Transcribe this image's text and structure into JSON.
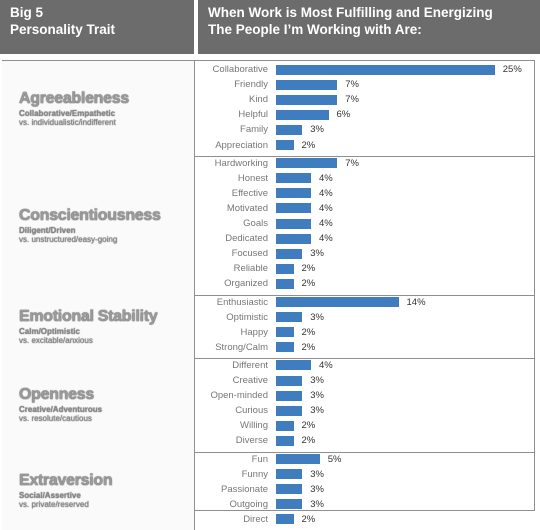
{
  "header": {
    "left_line1": "Big 5",
    "left_line2": "Personality Trait",
    "right_line1": "When Work is Most Fulfilling and Energizing",
    "right_line2": "The People I’m Working with Are:"
  },
  "colors": {
    "bar": "#3f7dbf",
    "header_bg": "#6c6c6c"
  },
  "chart_data": {
    "type": "bar",
    "orientation": "horizontal",
    "value_unit": "%",
    "xlim": [
      0,
      25
    ],
    "groups": [
      {
        "trait": "Agreeableness",
        "desc1": "Collaborative/Empathetic",
        "desc2": "vs. individualistic/indifferent",
        "items": [
          {
            "label": "Collaborative",
            "value": 25,
            "text": "25%"
          },
          {
            "label": "Friendly",
            "value": 7,
            "text": "7%"
          },
          {
            "label": "Kind",
            "value": 7,
            "text": "7%"
          },
          {
            "label": "Helpful",
            "value": 6,
            "text": "6%"
          },
          {
            "label": "Family",
            "value": 3,
            "text": "3%"
          },
          {
            "label": "Appreciation",
            "value": 2,
            "text": "2%"
          }
        ]
      },
      {
        "trait": "Conscientiousness",
        "desc1": "Diligent/Driven",
        "desc2": "vs. unstructured/easy-going",
        "items": [
          {
            "label": "Hardworking",
            "value": 7,
            "text": "7%"
          },
          {
            "label": "Honest",
            "value": 4,
            "text": "4%"
          },
          {
            "label": "Effective",
            "value": 4,
            "text": "4%"
          },
          {
            "label": "Motivated",
            "value": 4,
            "text": "4%"
          },
          {
            "label": "Goals",
            "value": 4,
            "text": "4%"
          },
          {
            "label": "Dedicated",
            "value": 4,
            "text": "4%"
          },
          {
            "label": "Focused",
            "value": 3,
            "text": "3%"
          },
          {
            "label": "Reliable",
            "value": 2,
            "text": "2%"
          },
          {
            "label": "Organized",
            "value": 2,
            "text": "2%"
          }
        ]
      },
      {
        "trait": "Emotional Stability",
        "desc1": "Calm/Optimistic",
        "desc2": "vs. excitable/anxious",
        "items": [
          {
            "label": "Enthusiastic",
            "value": 14,
            "text": "14%"
          },
          {
            "label": "Optimistic",
            "value": 3,
            "text": "3%"
          },
          {
            "label": "Happy",
            "value": 2,
            "text": "2%"
          },
          {
            "label": "Strong/Calm",
            "value": 2,
            "text": "2%"
          }
        ]
      },
      {
        "trait": "Openness",
        "desc1": "Creative/Adventurous",
        "desc2": "vs. resolute/cautious",
        "items": [
          {
            "label": "Different",
            "value": 4,
            "text": "4%"
          },
          {
            "label": "Creative",
            "value": 3,
            "text": "3%"
          },
          {
            "label": "Open-minded",
            "value": 3,
            "text": "3%"
          },
          {
            "label": "Curious",
            "value": 3,
            "text": "3%"
          },
          {
            "label": "Willing",
            "value": 2,
            "text": "2%"
          },
          {
            "label": "Diverse",
            "value": 2,
            "text": "2%"
          }
        ]
      },
      {
        "trait": "Extraversion",
        "desc1": "Social/Assertive",
        "desc2": "vs. private/reserved",
        "items": [
          {
            "label": "Fun",
            "value": 5,
            "text": "5%"
          },
          {
            "label": "Funny",
            "value": 3,
            "text": "3%"
          },
          {
            "label": "Passionate",
            "value": 3,
            "text": "3%"
          },
          {
            "label": "Outgoing",
            "value": 3,
            "text": "3%"
          },
          {
            "label": "Direct",
            "value": 2,
            "text": "2%"
          }
        ]
      }
    ]
  }
}
